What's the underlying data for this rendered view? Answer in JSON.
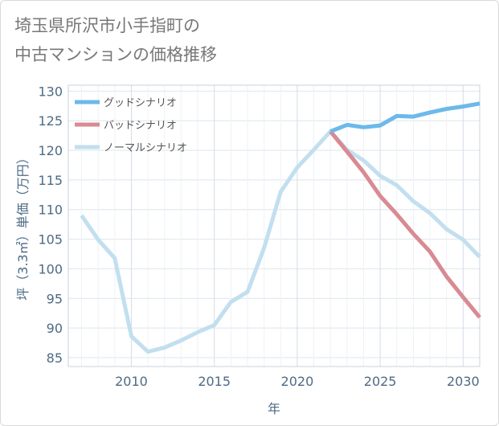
{
  "title_line1": "埼玉県所沢市小手指町の",
  "title_line2": "中古マンションの価格推移",
  "chart_data": {
    "type": "line",
    "title": "埼玉県所沢市小手指町の中古マンションの価格推移",
    "xlabel": "年",
    "ylabel": "坪（3.3㎡）単価（万円）",
    "xlim": [
      2006.2,
      2031
    ],
    "ylim": [
      83.5,
      131
    ],
    "xticks": [
      2010,
      2015,
      2020,
      2025,
      2030
    ],
    "yticks": [
      85,
      90,
      95,
      100,
      105,
      110,
      115,
      120,
      125,
      130
    ],
    "grid": true,
    "legend_position": "top-left",
    "series": [
      {
        "name": "グッドシナリオ",
        "color": "#6cb9ea",
        "x": [
          2022,
          2023,
          2024,
          2025,
          2026,
          2027,
          2028,
          2029,
          2030,
          2031
        ],
        "values": [
          123.2,
          124.3,
          123.9,
          124.2,
          125.8,
          125.7,
          126.4,
          127.0,
          127.4,
          127.9
        ]
      },
      {
        "name": "バッドシナリオ",
        "color": "#d98a92",
        "x": [
          2022,
          2023,
          2024,
          2025,
          2026,
          2027,
          2028,
          2029,
          2030,
          2031
        ],
        "values": [
          123.2,
          119.8,
          116.3,
          112.3,
          109.2,
          105.9,
          102.9,
          98.7,
          95.2,
          91.8
        ]
      },
      {
        "name": "ノーマルシナリオ",
        "color": "#c2dfef",
        "x": [
          2007,
          2008,
          2009,
          2010,
          2011,
          2012,
          2013,
          2014,
          2015,
          2016,
          2017,
          2018,
          2019,
          2020,
          2021,
          2022,
          2023,
          2024,
          2025,
          2026,
          2027,
          2028,
          2029,
          2030,
          2031
        ],
        "values": [
          109.0,
          104.9,
          101.8,
          88.6,
          86.0,
          86.7,
          87.9,
          89.3,
          90.5,
          94.4,
          96.1,
          103.5,
          113.0,
          117.1,
          120.1,
          123.2,
          120.1,
          118.3,
          115.7,
          114.1,
          111.4,
          109.4,
          106.7,
          104.9,
          102.0
        ]
      }
    ]
  }
}
